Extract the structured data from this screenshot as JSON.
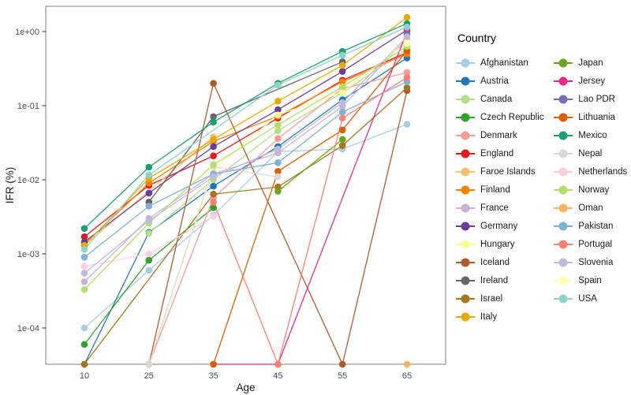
{
  "figure": {
    "x_axis_label": "Age",
    "y_axis_label": "IFR (%)",
    "x_tick_labels": [
      "10",
      "25",
      "35",
      "45",
      "55",
      "65"
    ],
    "y_tick_labels": [
      "1e+00",
      "1e-01",
      "1e-02",
      "1e-03",
      "1e-04"
    ]
  },
  "legend": {
    "title": "Country"
  },
  "chart_data": {
    "type": "line",
    "title": "",
    "xlabel": "Age",
    "ylabel": "IFR (%)",
    "x": [
      10,
      25,
      35,
      45,
      55,
      65
    ],
    "y_scale": "log10",
    "y_ticks": [
      1,
      0.1,
      0.01,
      0.001,
      0.0001
    ],
    "ylim": [
      3e-05,
      2
    ],
    "grid": false,
    "legend_position": "right",
    "zero_note": "values of 0 are plotted as points sitting on the x-axis (below the log scale floor)",
    "series": [
      {
        "name": "Afghanistan",
        "color": "#A6CEE3",
        "values": [
          0.0001,
          0.0006,
          0.0033,
          0.024,
          0.026,
          0.056
        ]
      },
      {
        "name": "Austria",
        "color": "#1F78B4",
        "values": [
          0,
          0.00195,
          0.0082,
          0.028,
          0.12,
          0.44
        ]
      },
      {
        "name": "Canada",
        "color": "#B2DF8A",
        "values": [
          null,
          0.0019,
          0.01,
          0.046,
          0.15,
          0.58
        ]
      },
      {
        "name": "Czech Republic",
        "color": "#33A02C",
        "values": [
          6e-05,
          0.00082,
          0.0042,
          null,
          null,
          null
        ]
      },
      {
        "name": "Denmark",
        "color": "#FB9A99",
        "values": [
          null,
          0,
          0.0057,
          0.036,
          0.17,
          0.28
        ]
      },
      {
        "name": "England",
        "color": "#E31A1C",
        "values": [
          0.0017,
          0.0084,
          0.021,
          0.068,
          0.22,
          0.52
        ]
      },
      {
        "name": "Faroe Islands",
        "color": "#FDBF6F",
        "values": [
          0.0013,
          null,
          0.038,
          null,
          null,
          null
        ]
      },
      {
        "name": "Finland",
        "color": "#FF7F00",
        "values": [
          0.00135,
          0.009,
          0.033,
          0.072,
          0.21,
          0.5
        ]
      },
      {
        "name": "France",
        "color": "#CAB2D6",
        "values": [
          0.00042,
          0.003,
          0.012,
          0.023,
          0.098,
          0.8
        ]
      },
      {
        "name": "Germany",
        "color": "#6A3D9A",
        "values": [
          0.00145,
          0.0066,
          0.028,
          0.088,
          0.29,
          1.05
        ]
      },
      {
        "name": "Hungary",
        "color": "#FFFF99",
        "values": [
          null,
          0,
          0.014,
          0.075,
          0.152,
          0.72
        ]
      },
      {
        "name": "Iceland",
        "color": "#B15928",
        "values": [
          null,
          0,
          0.2,
          null,
          0,
          0.16
        ]
      },
      {
        "name": "Ireland",
        "color": "#666666",
        "values": [
          null,
          0.005,
          0.071,
          null,
          0.39,
          null
        ]
      },
      {
        "name": "Israel",
        "color": "#A6761D",
        "values": [
          0,
          null,
          0.0064,
          0.008,
          0.029,
          0.175
        ]
      },
      {
        "name": "Italy",
        "color": "#E6AB02",
        "values": [
          0.0013,
          0.0105,
          0.035,
          0.115,
          0.35,
          1.55
        ]
      },
      {
        "name": "Japan",
        "color": "#66A61E",
        "values": [
          null,
          null,
          null,
          0.007,
          0.035,
          null
        ]
      },
      {
        "name": "Jersey",
        "color": "#E7298A",
        "values": [
          null,
          null,
          0,
          0,
          null,
          1.0
        ]
      },
      {
        "name": "Lao PDR",
        "color": "#7570B3",
        "values": [
          null,
          null,
          null,
          null,
          null,
          0.92
        ]
      },
      {
        "name": "Lithuania",
        "color": "#D95F02",
        "values": [
          null,
          null,
          0,
          0.013,
          0.047,
          0.55
        ]
      },
      {
        "name": "Mexico",
        "color": "#1B9E77",
        "values": [
          0.0022,
          0.0148,
          0.06,
          0.2,
          0.54,
          1.28
        ]
      },
      {
        "name": "Nepal",
        "color": "#D9D9D9",
        "values": [
          null,
          0,
          0.015,
          0.011,
          null,
          null
        ]
      },
      {
        "name": "Netherlands",
        "color": "#FCCDE5",
        "values": [
          0.00068,
          0.001,
          0.0032,
          null,
          null,
          null
        ]
      },
      {
        "name": "Norway",
        "color": "#B3DE69",
        "values": [
          0.00033,
          0.0026,
          0.016,
          0.055,
          0.18,
          0.63
        ]
      },
      {
        "name": "Oman",
        "color": "#FDB462",
        "values": [
          null,
          null,
          null,
          null,
          null,
          0
        ]
      },
      {
        "name": "Pakistan",
        "color": "#80B1D3",
        "values": [
          0.0009,
          0.0044,
          0.012,
          0.017,
          0.082,
          0.21
        ]
      },
      {
        "name": "Portugal",
        "color": "#FB8072",
        "values": [
          null,
          null,
          0.005,
          0,
          0.068,
          0.24
        ]
      },
      {
        "name": "Slovenia",
        "color": "#BEBADA",
        "values": [
          0.00055,
          0.0028,
          0.011,
          0.026,
          0.11,
          0.85
        ]
      },
      {
        "name": "Spain",
        "color": "#FFFFB3",
        "values": [
          null,
          null,
          null,
          null,
          null,
          0.69
        ]
      },
      {
        "name": "USA",
        "color": "#8DD3C7",
        "values": [
          0.00115,
          0.0116,
          null,
          0.19,
          0.48,
          1.15
        ]
      }
    ]
  }
}
